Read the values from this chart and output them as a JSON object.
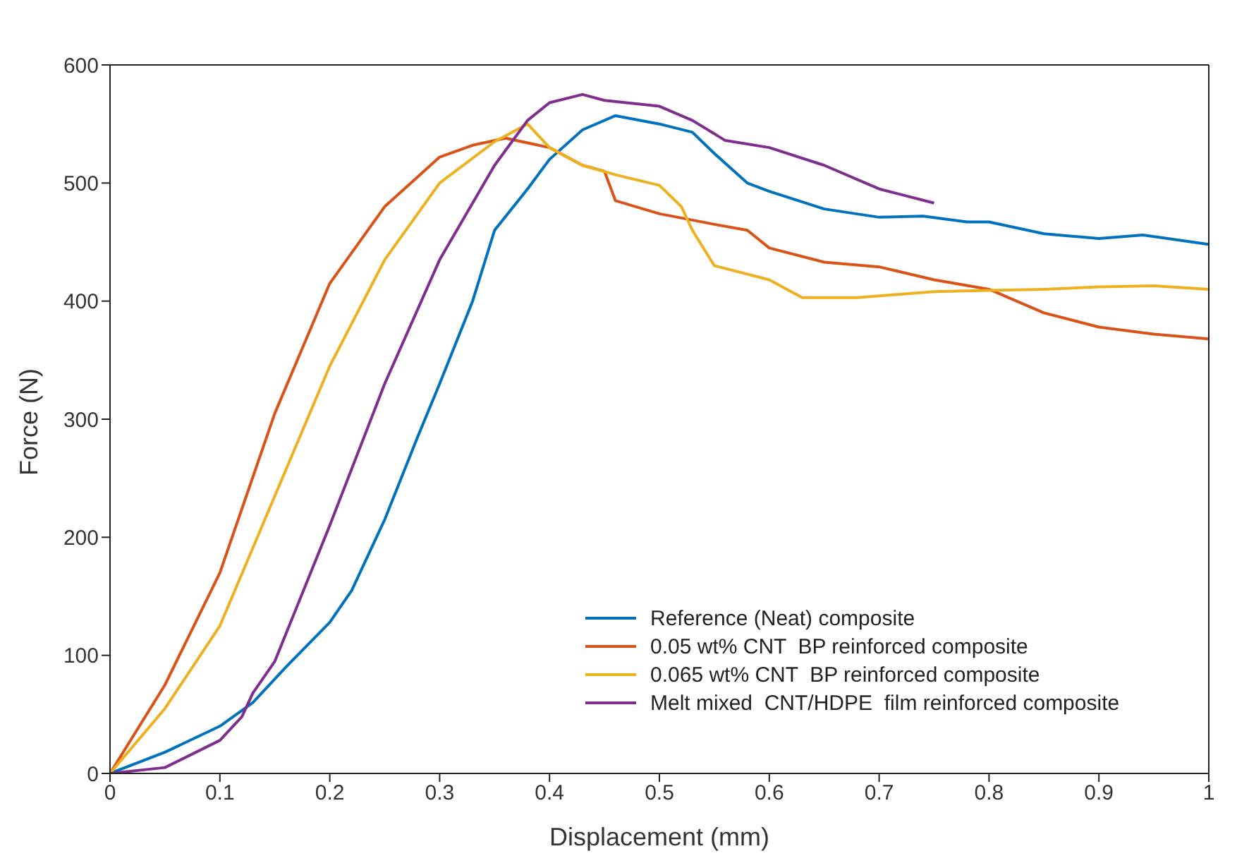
{
  "chart_data": {
    "type": "line",
    "xlabel": "Displacement (mm)",
    "ylabel": "Force (N)",
    "xlim": [
      0,
      1
    ],
    "ylim": [
      0,
      600
    ],
    "xticks": [
      0,
      0.1,
      0.2,
      0.3,
      0.4,
      0.5,
      0.6,
      0.7,
      0.8,
      0.9,
      1
    ],
    "yticks": [
      0,
      100,
      200,
      300,
      400,
      500,
      600
    ],
    "legend": "bottom right",
    "marker": "none",
    "line_style": "solid",
    "series": [
      {
        "name": "Reference (Neat) composite",
        "color": "#0072bd",
        "x": [
          0,
          0.05,
          0.1,
          0.13,
          0.16,
          0.2,
          0.22,
          0.25,
          0.28,
          0.3,
          0.33,
          0.35,
          0.38,
          0.4,
          0.43,
          0.46,
          0.5,
          0.53,
          0.55,
          0.58,
          0.6,
          0.65,
          0.7,
          0.74,
          0.78,
          0.8,
          0.85,
          0.9,
          0.94,
          1.0
        ],
        "values": [
          0,
          18,
          40,
          60,
          90,
          128,
          155,
          215,
          285,
          330,
          400,
          460,
          495,
          520,
          545,
          557,
          550,
          543,
          525,
          500,
          493,
          478,
          471,
          472,
          467,
          467,
          457,
          453,
          456,
          448
        ]
      },
      {
        "name": "0.05 wt% CNT  BP reinforced composite",
        "color": "#d95319",
        "x": [
          0,
          0.05,
          0.1,
          0.15,
          0.2,
          0.25,
          0.3,
          0.33,
          0.36,
          0.4,
          0.43,
          0.45,
          0.46,
          0.5,
          0.55,
          0.58,
          0.6,
          0.65,
          0.7,
          0.75,
          0.8,
          0.85,
          0.9,
          0.95,
          1.0
        ],
        "values": [
          0,
          75,
          170,
          305,
          415,
          480,
          522,
          532,
          538,
          530,
          515,
          510,
          485,
          474,
          465,
          460,
          445,
          433,
          429,
          418,
          410,
          390,
          378,
          372,
          368
        ]
      },
      {
        "name": "0.065 wt% CNT  BP reinforced composite",
        "color": "#edb120",
        "x": [
          0,
          0.05,
          0.1,
          0.15,
          0.2,
          0.25,
          0.3,
          0.35,
          0.38,
          0.4,
          0.43,
          0.46,
          0.5,
          0.52,
          0.53,
          0.55,
          0.6,
          0.63,
          0.68,
          0.75,
          0.8,
          0.85,
          0.9,
          0.95,
          1.0
        ],
        "values": [
          0,
          55,
          125,
          235,
          345,
          435,
          500,
          535,
          550,
          530,
          515,
          507,
          498,
          480,
          460,
          430,
          418,
          403,
          403,
          408,
          409,
          410,
          412,
          413,
          410
        ]
      },
      {
        "name": "Melt mixed  CNT/HDPE  film reinforced composite",
        "color": "#7e2f8e",
        "x": [
          0,
          0.05,
          0.1,
          0.12,
          0.13,
          0.15,
          0.2,
          0.25,
          0.3,
          0.35,
          0.38,
          0.4,
          0.43,
          0.45,
          0.5,
          0.53,
          0.56,
          0.6,
          0.65,
          0.7,
          0.75
        ],
        "values": [
          0,
          5,
          28,
          48,
          68,
          95,
          210,
          330,
          435,
          515,
          553,
          568,
          575,
          570,
          565,
          553,
          536,
          530,
          515,
          495,
          483
        ]
      }
    ]
  }
}
